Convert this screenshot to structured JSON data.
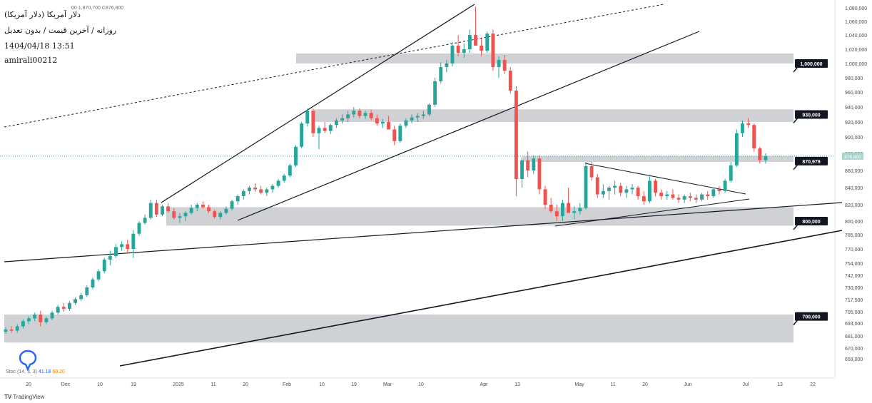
{
  "header": {
    "symbol_title": "دلار آمریکا (دلار آمریکا)",
    "interval_line": "روزانه / آخرین قیمت / بدون تعدیل",
    "datetime": "1404/04/18 13:51",
    "author": "amirali00212",
    "ohlc_text": "00 1,870,700  C876,800"
  },
  "indicator": {
    "name": "Stoc",
    "params": "(14, 3, 3)",
    "k_value": "41.18",
    "d_value": "60.20"
  },
  "branding": {
    "logo_text": "TradingView"
  },
  "colors": {
    "up": "#26a69a",
    "down": "#ef5350",
    "zone": "#c8c9cd",
    "line": "#131722",
    "price_label_bg": "#131722",
    "current_price_bg": "#a8d4cc"
  },
  "chart_data": {
    "type": "candlestick",
    "y_axis": {
      "ticks": [
        659000,
        670000,
        681000,
        693000,
        705000,
        717500,
        730000,
        742000,
        754000,
        770000,
        785000,
        800000,
        820000,
        840000,
        860000,
        880000,
        900000,
        920000,
        940000,
        960000,
        980000,
        1000000,
        1020000,
        1040000,
        1060000,
        1080000
      ],
      "tick_labels": [
        "659,000",
        "670,000",
        "681,000",
        "693,000",
        "705,000",
        "717,500",
        "730,000",
        "742,000",
        "754,000",
        "770,000",
        "785,000",
        "800,000",
        "820,000",
        "840,000",
        "860,000",
        "880,000",
        "900,000",
        "920,000",
        "940,000",
        "960,000",
        "980,000",
        "1,000,000",
        "1,020,000",
        "1,040,000",
        "1,060,000",
        "1,080,000"
      ]
    },
    "x_axis": {
      "tick_labels": [
        "20",
        "Dec",
        "10",
        "19",
        "2025",
        "11",
        "20",
        "Feb",
        "10",
        "19",
        "Mar",
        "10",
        "Apr",
        "13",
        "May",
        "11",
        "20",
        "Jun",
        "Jul",
        "13",
        "22"
      ]
    },
    "current_price": {
      "value": 876800,
      "label": "876,800"
    },
    "level_labels": [
      {
        "value": 1000000,
        "label": "1,000,000"
      },
      {
        "value": 930000,
        "label": "930,000"
      },
      {
        "value": 870979,
        "label": "870,979"
      },
      {
        "value": 800000,
        "label": "800,000"
      },
      {
        "value": 700000,
        "label": "700,000"
      }
    ],
    "zones": [
      {
        "low": 1000000,
        "high": 1014000
      },
      {
        "low": 920000,
        "high": 937000
      },
      {
        "low": 870000,
        "high": 877000
      },
      {
        "low": 795000,
        "high": 817000
      },
      {
        "low": 675000,
        "high": 702000
      }
    ],
    "candles_ohlc": [
      [
        685000,
        689000,
        683000,
        687000
      ],
      [
        687000,
        690000,
        684000,
        686000
      ],
      [
        686000,
        692000,
        684000,
        690000
      ],
      [
        690000,
        697000,
        688000,
        695000
      ],
      [
        695000,
        700000,
        692000,
        698000
      ],
      [
        698000,
        704000,
        695000,
        702000
      ],
      [
        702000,
        706000,
        690000,
        694000
      ],
      [
        694000,
        700000,
        692000,
        698000
      ],
      [
        698000,
        706000,
        696000,
        704000
      ],
      [
        704000,
        712000,
        702000,
        710000
      ],
      [
        710000,
        714000,
        705000,
        708000
      ],
      [
        708000,
        716000,
        706000,
        714000
      ],
      [
        714000,
        720000,
        712000,
        718000
      ],
      [
        718000,
        724000,
        716000,
        722000
      ],
      [
        722000,
        732000,
        720000,
        730000
      ],
      [
        730000,
        740000,
        728000,
        738000
      ],
      [
        738000,
        748000,
        736000,
        746000
      ],
      [
        746000,
        760000,
        744000,
        758000
      ],
      [
        758000,
        768000,
        752000,
        762000
      ],
      [
        762000,
        775000,
        760000,
        772000
      ],
      [
        772000,
        778000,
        768000,
        775000
      ],
      [
        775000,
        780000,
        765000,
        770000
      ],
      [
        770000,
        790000,
        760000,
        786000
      ],
      [
        786000,
        800000,
        784000,
        798000
      ],
      [
        798000,
        808000,
        796000,
        804000
      ],
      [
        804000,
        826000,
        802000,
        822000
      ],
      [
        822000,
        826000,
        805000,
        808000
      ],
      [
        808000,
        820000,
        806000,
        818000
      ],
      [
        818000,
        822000,
        810000,
        812000
      ],
      [
        812000,
        816000,
        802000,
        804000
      ],
      [
        804000,
        810000,
        798000,
        806000
      ],
      [
        806000,
        812000,
        800000,
        810000
      ],
      [
        810000,
        820000,
        808000,
        816000
      ],
      [
        816000,
        822000,
        812000,
        820000
      ],
      [
        820000,
        824000,
        815000,
        817000
      ],
      [
        817000,
        820000,
        810000,
        812000
      ],
      [
        812000,
        814000,
        803000,
        805000
      ],
      [
        805000,
        812000,
        802000,
        810000
      ],
      [
        810000,
        818000,
        808000,
        815000
      ],
      [
        815000,
        826000,
        813000,
        824000
      ],
      [
        824000,
        832000,
        820000,
        830000
      ],
      [
        830000,
        838000,
        826000,
        836000
      ],
      [
        836000,
        842000,
        832000,
        840000
      ],
      [
        840000,
        845000,
        835000,
        838000
      ],
      [
        838000,
        842000,
        832000,
        834000
      ],
      [
        834000,
        840000,
        830000,
        838000
      ],
      [
        838000,
        844000,
        834000,
        842000
      ],
      [
        842000,
        850000,
        840000,
        848000
      ],
      [
        848000,
        856000,
        846000,
        854000
      ],
      [
        854000,
        868000,
        852000,
        866000
      ],
      [
        866000,
        890000,
        864000,
        888000
      ],
      [
        888000,
        920000,
        886000,
        918000
      ],
      [
        918000,
        938000,
        914000,
        935000
      ],
      [
        935000,
        938000,
        900000,
        905000
      ],
      [
        905000,
        915000,
        885000,
        912000
      ],
      [
        912000,
        920000,
        905000,
        908000
      ],
      [
        908000,
        918000,
        904000,
        916000
      ],
      [
        916000,
        925000,
        912000,
        922000
      ],
      [
        922000,
        930000,
        918000,
        925000
      ],
      [
        925000,
        935000,
        920000,
        930000
      ],
      [
        930000,
        940000,
        926000,
        935000
      ],
      [
        935000,
        938000,
        925000,
        928000
      ],
      [
        928000,
        935000,
        924000,
        932000
      ],
      [
        932000,
        936000,
        922000,
        925000
      ],
      [
        925000,
        930000,
        915000,
        918000
      ],
      [
        918000,
        924000,
        912000,
        920000
      ],
      [
        920000,
        928000,
        915000,
        910000
      ],
      [
        910000,
        915000,
        890000,
        895000
      ],
      [
        895000,
        918000,
        893000,
        915000
      ],
      [
        915000,
        925000,
        912000,
        922000
      ],
      [
        922000,
        930000,
        918000,
        926000
      ],
      [
        926000,
        932000,
        920000,
        928000
      ],
      [
        928000,
        935000,
        924000,
        930000
      ],
      [
        930000,
        945000,
        928000,
        943000
      ],
      [
        943000,
        980000,
        940000,
        975000
      ],
      [
        975000,
        1002000,
        972000,
        995000
      ],
      [
        995000,
        1005000,
        988000,
        1000000
      ],
      [
        1000000,
        1030000,
        996000,
        1025000
      ],
      [
        1025000,
        1040000,
        1010000,
        1015000
      ],
      [
        1015000,
        1028000,
        1008000,
        1020000
      ],
      [
        1020000,
        1048000,
        1015000,
        1040000
      ],
      [
        1040000,
        1082000,
        1030000,
        1025000
      ],
      [
        1025000,
        1035000,
        1010000,
        1018000
      ],
      [
        1018000,
        1045000,
        1015000,
        1042000
      ],
      [
        1042000,
        1048000,
        990000,
        995000
      ],
      [
        995000,
        1010000,
        980000,
        1005000
      ],
      [
        1005000,
        1012000,
        985000,
        990000
      ],
      [
        990000,
        995000,
        958000,
        962000
      ],
      [
        962000,
        968000,
        830000,
        850000
      ],
      [
        850000,
        876000,
        840000,
        872000
      ],
      [
        872000,
        882000,
        852000,
        860000
      ],
      [
        860000,
        878000,
        856000,
        874000
      ],
      [
        874000,
        878000,
        832000,
        838000
      ],
      [
        838000,
        842000,
        815000,
        820000
      ],
      [
        820000,
        828000,
        810000,
        812000
      ],
      [
        812000,
        820000,
        800000,
        806000
      ],
      [
        806000,
        826000,
        800000,
        822000
      ],
      [
        822000,
        840000,
        818000,
        810000
      ],
      [
        810000,
        818000,
        802000,
        812000
      ],
      [
        812000,
        822000,
        808000,
        816000
      ],
      [
        816000,
        870000,
        814000,
        865000
      ],
      [
        865000,
        870000,
        848000,
        852000
      ],
      [
        852000,
        856000,
        828000,
        832000
      ],
      [
        832000,
        844000,
        828000,
        836000
      ],
      [
        836000,
        842000,
        826000,
        840000
      ],
      [
        840000,
        848000,
        832000,
        842000
      ],
      [
        842000,
        846000,
        830000,
        834000
      ],
      [
        834000,
        842000,
        828000,
        838000
      ],
      [
        838000,
        844000,
        832000,
        840000
      ],
      [
        840000,
        842000,
        826000,
        830000
      ],
      [
        830000,
        836000,
        820000,
        824000
      ],
      [
        824000,
        855000,
        822000,
        848000
      ],
      [
        848000,
        850000,
        830000,
        834000
      ],
      [
        834000,
        838000,
        826000,
        830000
      ],
      [
        830000,
        836000,
        826000,
        832000
      ],
      [
        832000,
        838000,
        826000,
        828000
      ],
      [
        828000,
        832000,
        822000,
        826000
      ],
      [
        826000,
        832000,
        822000,
        830000
      ],
      [
        830000,
        834000,
        824000,
        828000
      ],
      [
        828000,
        832000,
        822000,
        826000
      ],
      [
        826000,
        834000,
        824000,
        832000
      ],
      [
        832000,
        836000,
        826000,
        830000
      ],
      [
        830000,
        840000,
        828000,
        838000
      ],
      [
        838000,
        842000,
        832000,
        836000
      ],
      [
        836000,
        850000,
        834000,
        848000
      ],
      [
        848000,
        870000,
        846000,
        866000
      ],
      [
        866000,
        910000,
        864000,
        905000
      ],
      [
        905000,
        922000,
        900000,
        918000
      ],
      [
        918000,
        925000,
        912000,
        916000
      ],
      [
        916000,
        918000,
        882000,
        886000
      ],
      [
        886000,
        888000,
        868000,
        872000
      ],
      [
        872000,
        880000,
        868000,
        876800
      ]
    ]
  }
}
